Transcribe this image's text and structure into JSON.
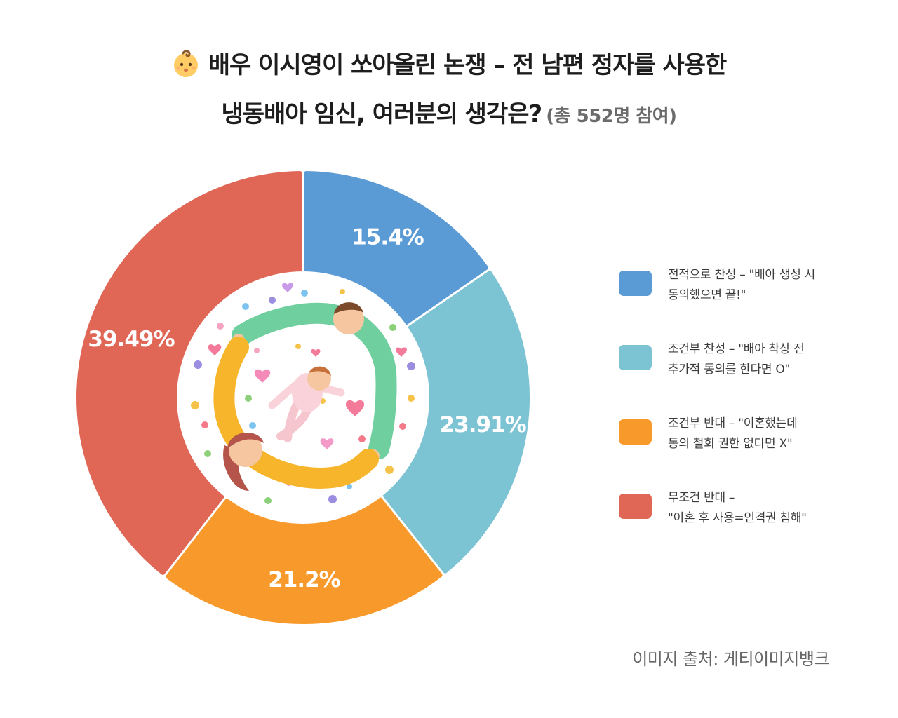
{
  "title": {
    "line1": "배우 이시영이 쏘아올린 논쟁 – 전 남편 정자를 사용한",
    "line2": "냉동배아 임신, 여러분의 생각은?",
    "participants": "(총 552명 참여)",
    "emoji_icon": "baby-face-icon"
  },
  "chart_data": {
    "type": "pie",
    "variant": "donut",
    "slices": [
      {
        "label": "15.4%",
        "value": 15.4,
        "color": "#5b9bd5",
        "legend_line1": "전적으로 찬성 – \"배아 생성 시",
        "legend_line2": "동의했으면 끝!\""
      },
      {
        "label": "23.91%",
        "value": 23.91,
        "color": "#7cc3d3",
        "legend_line1": "조건부 찬성 – \"배아 착상 전",
        "legend_line2": "추가적 동의를 한다면 O\""
      },
      {
        "label": "21.2%",
        "value": 21.2,
        "color": "#f7992b",
        "legend_line1": "조건부 반대 – \"이혼했는데",
        "legend_line2": "동의 철회 권한 없다면 X\""
      },
      {
        "label": "39.49%",
        "value": 39.49,
        "color": "#e06656",
        "legend_line1": "무조건 반대 –",
        "legend_line2": "\"이혼 후 사용=인격권 침해\""
      }
    ],
    "legend_position": "right",
    "center_image": "family-illustration"
  },
  "source": "이미지 출처: 게티이미지뱅크"
}
